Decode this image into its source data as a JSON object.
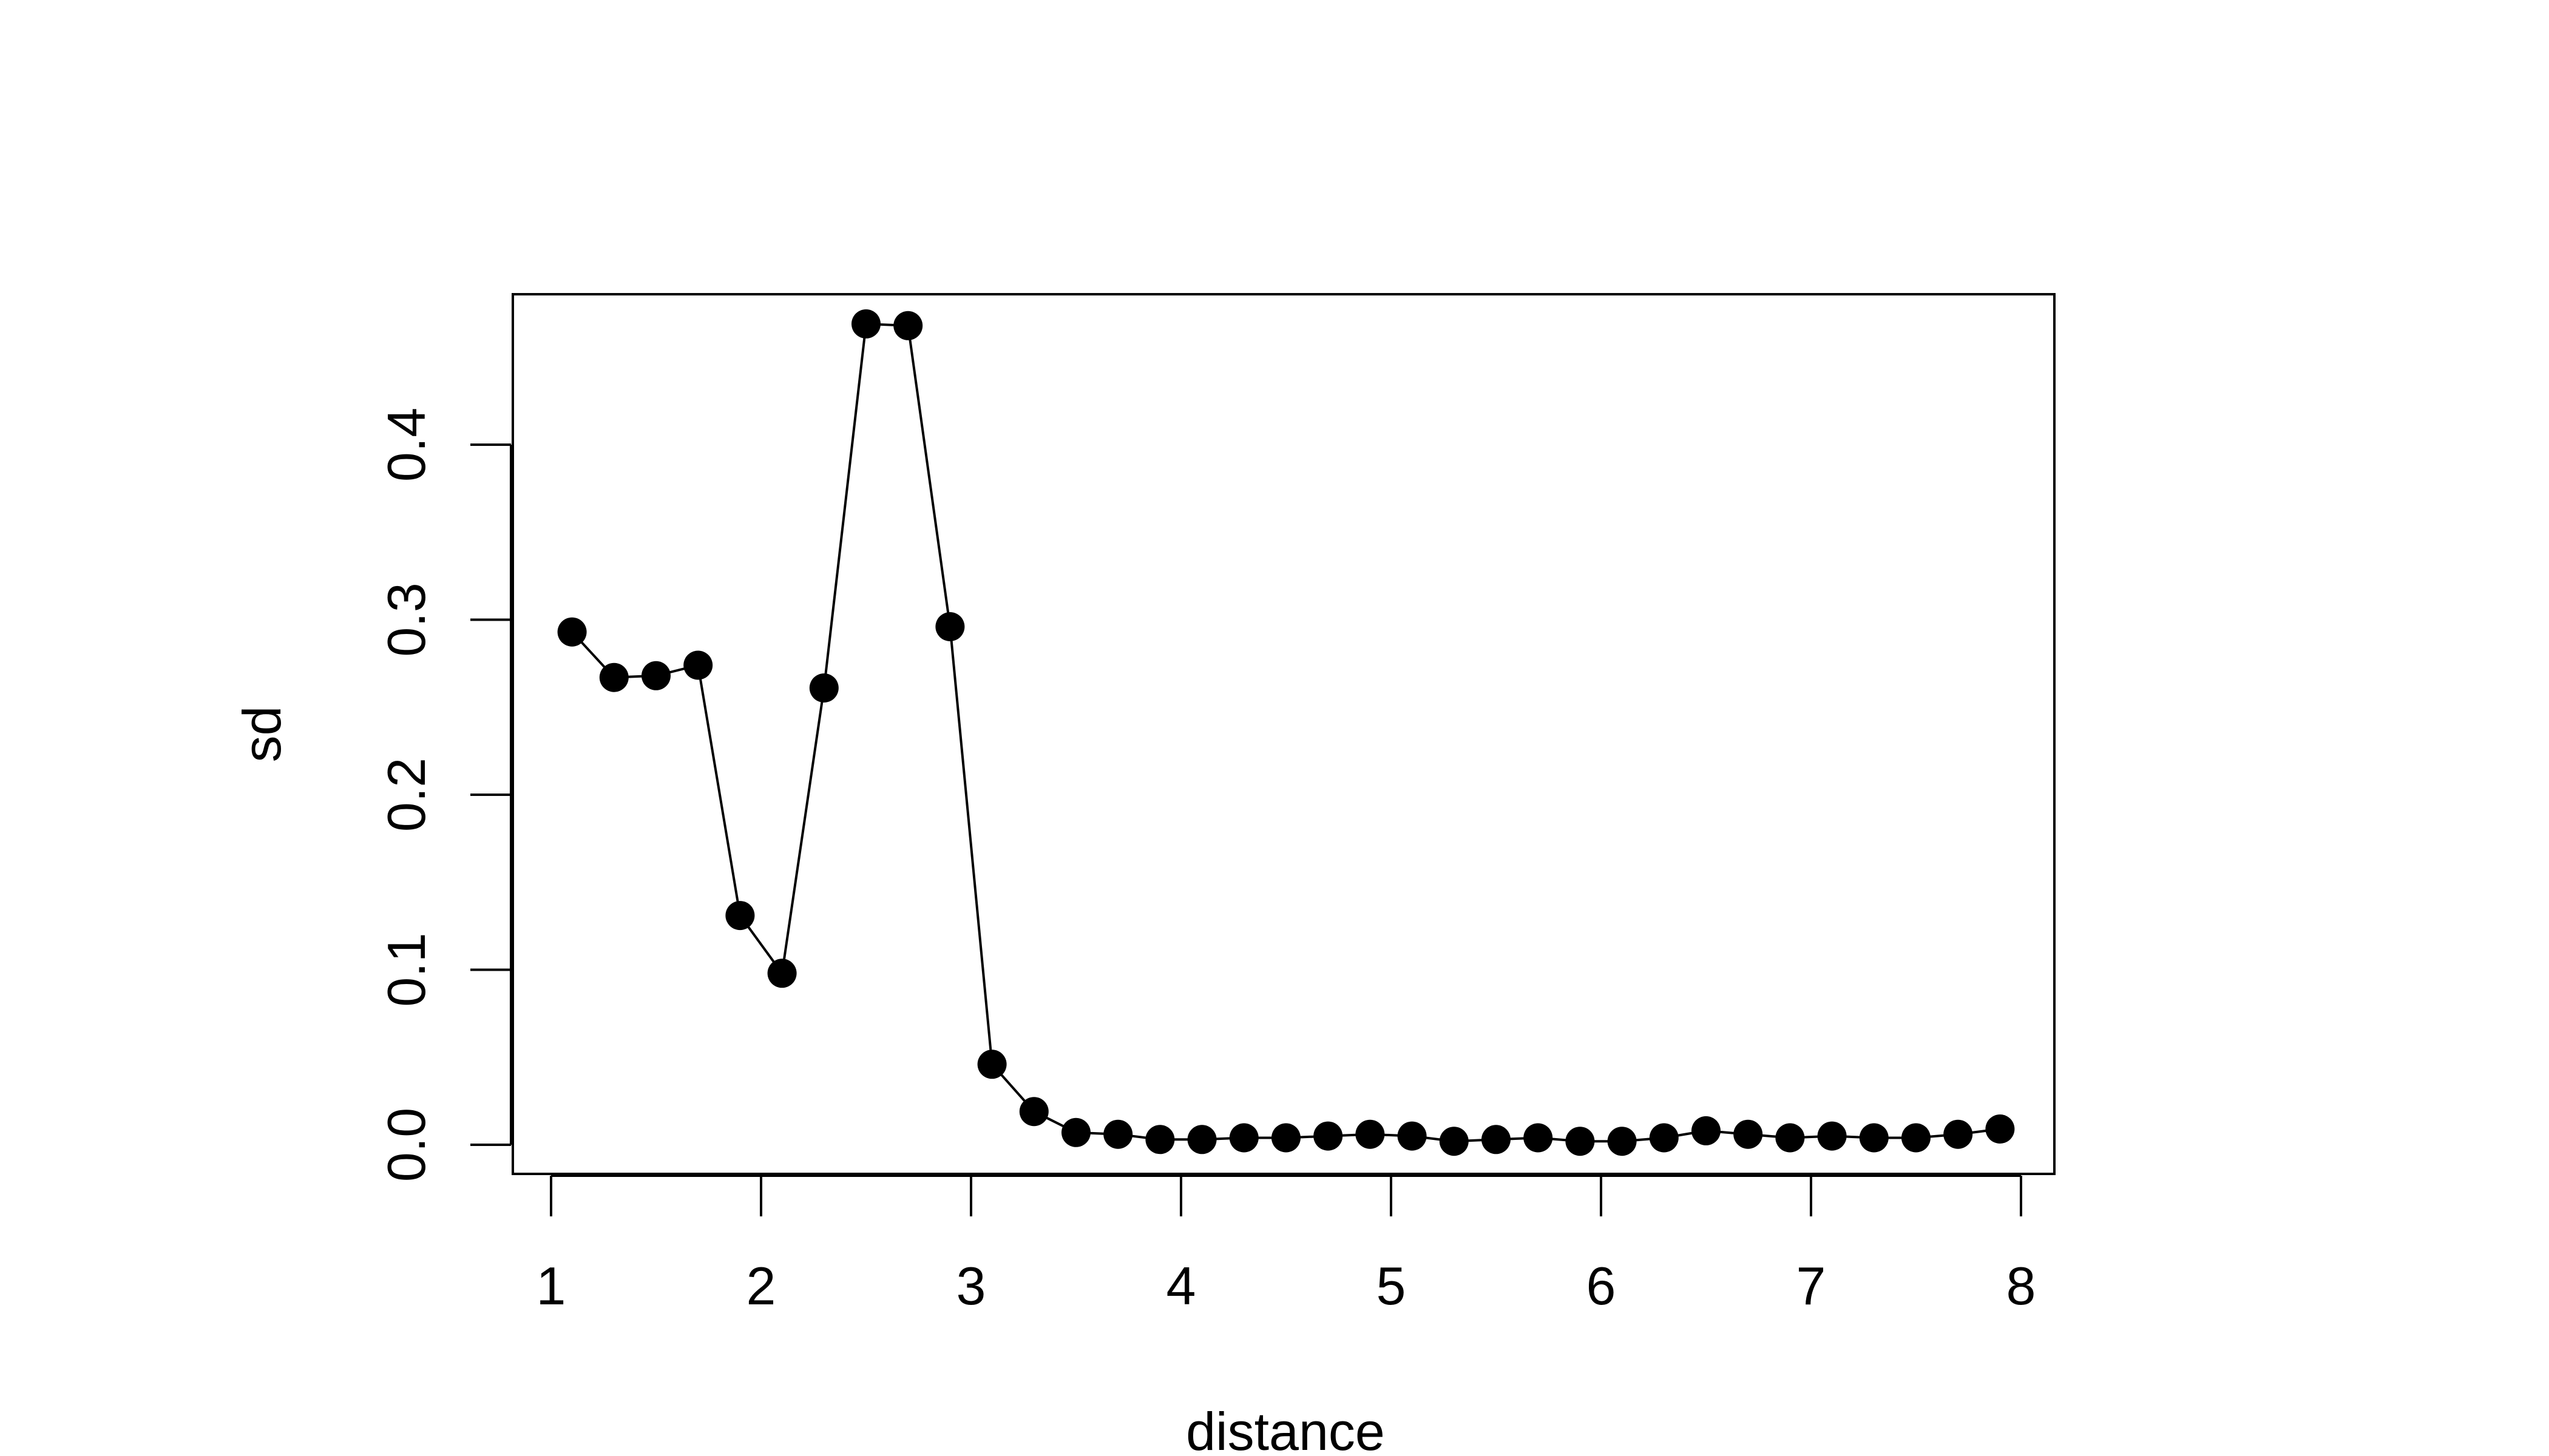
{
  "chart_data": {
    "type": "line",
    "title": "",
    "xlabel": "distance",
    "ylabel": "sd",
    "xlim": [
      1,
      8
    ],
    "ylim": [
      0,
      0.45
    ],
    "x_ticks": [
      1,
      2,
      3,
      4,
      5,
      6,
      7,
      8
    ],
    "x_tick_labels": [
      "1",
      "2",
      "3",
      "4",
      "5",
      "6",
      "7",
      "8"
    ],
    "y_ticks": [
      0,
      0.1,
      0.2,
      0.3,
      0.4
    ],
    "y_tick_labels": [
      "0.0",
      "0.1",
      "0.2",
      "0.3",
      "0.4"
    ],
    "grid": false,
    "marker": "filled-circle",
    "line_color": "#000000",
    "series": [
      {
        "x": [
          1.1,
          1.3,
          1.5,
          1.7,
          1.9,
          2.1,
          2.3,
          2.5,
          2.7,
          2.9,
          3.1,
          3.3,
          3.5,
          3.7,
          3.9,
          4.1,
          4.3,
          4.5,
          4.7,
          4.9,
          5.1,
          5.3,
          5.5,
          5.7,
          5.9,
          6.1,
          6.3,
          6.5,
          6.7,
          6.9,
          7.1,
          7.3,
          7.5,
          7.7,
          7.9
        ],
        "values": [
          0.293,
          0.267,
          0.268,
          0.274,
          0.131,
          0.098,
          0.261,
          0.469,
          0.468,
          0.296,
          0.046,
          0.019,
          0.007,
          0.006,
          0.003,
          0.003,
          0.004,
          0.004,
          0.005,
          0.006,
          0.005,
          0.002,
          0.003,
          0.004,
          0.002,
          0.002,
          0.004,
          0.008,
          0.006,
          0.004,
          0.005,
          0.004,
          0.004,
          0.006,
          0.009
        ]
      }
    ]
  }
}
